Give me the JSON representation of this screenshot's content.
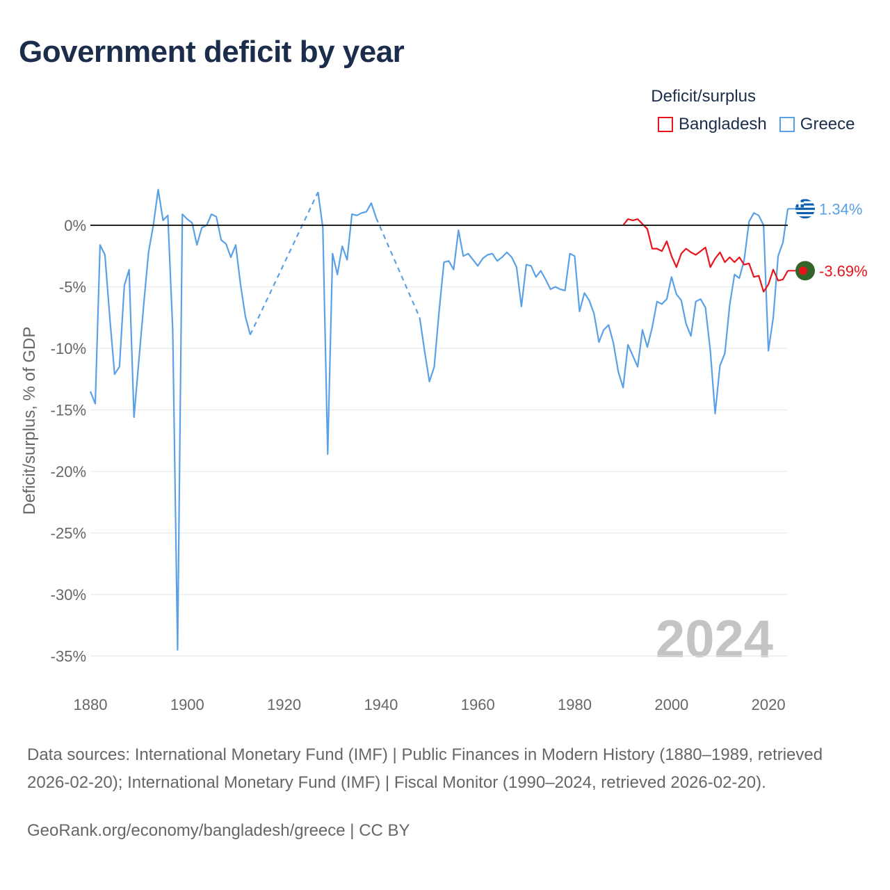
{
  "title": "Government deficit by year",
  "legend": {
    "title": "Deficit/surplus",
    "items": [
      {
        "label": "Bangladesh",
        "color": "#e8141c"
      },
      {
        "label": "Greece",
        "color": "#5aa0e6"
      }
    ]
  },
  "footer": {
    "sources": "Data sources: International Monetary Fund (IMF) | Public Finances in Modern History (1880–1989, retrieved 2026-02-20); International Monetary Fund (IMF) | Fiscal Monitor (1990–2024, retrieved 2026-02-20).",
    "credit": "GeoRank.org/economy/bangladesh/greece | CC BY"
  },
  "chart_data": {
    "type": "line",
    "title": "Government deficit by year",
    "xlabel": "",
    "ylabel": "Deficit/surplus, % of GDP",
    "xlim": [
      1880,
      2024
    ],
    "ylim": [
      -36,
      2.5
    ],
    "x_ticks": [
      1880,
      1900,
      1920,
      1940,
      1960,
      1980,
      2000,
      2020
    ],
    "y_ticks": [
      0,
      -5,
      -10,
      -15,
      -20,
      -25,
      -30,
      -35
    ],
    "y_tick_labels": [
      "0%",
      "-5%",
      "-10%",
      "-15%",
      "-20%",
      "-25%",
      "-30%",
      "-35%"
    ],
    "grid": true,
    "current_year_label": "2024",
    "series": [
      {
        "name": "Greece",
        "color": "#5aa0e6",
        "end_label": "1.34%",
        "segments": [
          {
            "dashed": false,
            "points": [
              [
                1880,
                -13.5
              ],
              [
                1881,
                -14.5
              ],
              [
                1882,
                -1.6
              ],
              [
                1883,
                -2.4
              ],
              [
                1884,
                -7.5
              ],
              [
                1885,
                -12.1
              ],
              [
                1886,
                -11.5
              ],
              [
                1887,
                -4.9
              ],
              [
                1888,
                -3.6
              ],
              [
                1889,
                -15.6
              ],
              [
                1890,
                -11
              ],
              [
                1891,
                -6.5
              ],
              [
                1892,
                -2.2
              ],
              [
                1893,
                0
              ],
              [
                1894,
                2.9
              ],
              [
                1895,
                0.4
              ],
              [
                1896,
                0.8
              ],
              [
                1897,
                -8.5
              ],
              [
                1898,
                -34.5
              ],
              [
                1899,
                0.9
              ],
              [
                1900,
                0.5
              ],
              [
                1901,
                0.2
              ],
              [
                1902,
                -1.6
              ],
              [
                1903,
                -0.2
              ],
              [
                1904,
                0
              ],
              [
                1905,
                0.9
              ],
              [
                1906,
                0.7
              ],
              [
                1907,
                -1.2
              ],
              [
                1908,
                -1.5
              ],
              [
                1909,
                -2.6
              ],
              [
                1910,
                -1.6
              ],
              [
                1911,
                -4.8
              ],
              [
                1912,
                -7.4
              ],
              [
                1913,
                -8.9
              ]
            ]
          },
          {
            "dashed": true,
            "points": [
              [
                1913,
                -8.9
              ],
              [
                1927,
                2.7
              ]
            ]
          },
          {
            "dashed": false,
            "points": [
              [
                1927,
                2.7
              ],
              [
                1928,
                -0.2
              ],
              [
                1929,
                -18.6
              ],
              [
                1930,
                -2.3
              ],
              [
                1931,
                -4
              ],
              [
                1932,
                -1.7
              ],
              [
                1933,
                -2.8
              ],
              [
                1934,
                0.9
              ],
              [
                1935,
                0.8
              ],
              [
                1936,
                1
              ],
              [
                1937,
                1.1
              ],
              [
                1938,
                1.8
              ],
              [
                1939,
                0.6
              ]
            ]
          },
          {
            "dashed": true,
            "points": [
              [
                1939,
                0.6
              ],
              [
                1948,
                -7.5
              ]
            ]
          },
          {
            "dashed": false,
            "points": [
              [
                1948,
                -7.5
              ],
              [
                1949,
                -10.2
              ],
              [
                1950,
                -12.7
              ],
              [
                1951,
                -11.5
              ],
              [
                1952,
                -7
              ],
              [
                1953,
                -3
              ],
              [
                1954,
                -2.9
              ],
              [
                1955,
                -3.6
              ],
              [
                1956,
                -0.4
              ],
              [
                1957,
                -2.5
              ],
              [
                1958,
                -2.3
              ],
              [
                1959,
                -2.8
              ],
              [
                1960,
                -3.3
              ],
              [
                1961,
                -2.7
              ],
              [
                1962,
                -2.4
              ],
              [
                1963,
                -2.3
              ],
              [
                1964,
                -2.9
              ],
              [
                1965,
                -2.6
              ],
              [
                1966,
                -2.2
              ],
              [
                1967,
                -2.6
              ],
              [
                1968,
                -3.4
              ],
              [
                1969,
                -6.6
              ],
              [
                1970,
                -3.2
              ],
              [
                1971,
                -3.3
              ],
              [
                1972,
                -4.2
              ],
              [
                1973,
                -3.7
              ],
              [
                1974,
                -4.4
              ],
              [
                1975,
                -5.2
              ],
              [
                1976,
                -5
              ],
              [
                1977,
                -5.2
              ],
              [
                1978,
                -5.3
              ],
              [
                1979,
                -2.3
              ],
              [
                1980,
                -2.5
              ],
              [
                1981,
                -7
              ],
              [
                1982,
                -5.5
              ],
              [
                1983,
                -6.1
              ],
              [
                1984,
                -7.2
              ],
              [
                1985,
                -9.5
              ],
              [
                1986,
                -8.5
              ],
              [
                1987,
                -8.1
              ],
              [
                1988,
                -9.6
              ],
              [
                1989,
                -11.9
              ],
              [
                1990,
                -13.2
              ],
              [
                1991,
                -9.7
              ],
              [
                1992,
                -10.6
              ],
              [
                1993,
                -11.5
              ],
              [
                1994,
                -8.5
              ],
              [
                1995,
                -9.9
              ],
              [
                1996,
                -8.3
              ],
              [
                1997,
                -6.2
              ],
              [
                1998,
                -6.4
              ],
              [
                1999,
                -6
              ],
              [
                2000,
                -4.2
              ],
              [
                2001,
                -5.6
              ],
              [
                2002,
                -6.1
              ],
              [
                2003,
                -8
              ],
              [
                2004,
                -9
              ],
              [
                2005,
                -6.2
              ],
              [
                2006,
                -6
              ],
              [
                2007,
                -6.7
              ],
              [
                2008,
                -10.2
              ],
              [
                2009,
                -15.3
              ],
              [
                2010,
                -11.4
              ],
              [
                2011,
                -10.4
              ],
              [
                2012,
                -6.5
              ],
              [
                2013,
                -4
              ],
              [
                2014,
                -4.3
              ],
              [
                2015,
                -2.8
              ],
              [
                2016,
                0.3
              ],
              [
                2017,
                1
              ],
              [
                2018,
                0.8
              ],
              [
                2019,
                0
              ],
              [
                2020,
                -10.2
              ],
              [
                2021,
                -7.5
              ],
              [
                2022,
                -2.5
              ],
              [
                2023,
                -1.4
              ],
              [
                2024,
                1.34
              ]
            ]
          }
        ]
      },
      {
        "name": "Bangladesh",
        "color": "#e8141c",
        "end_label": "-3.69%",
        "segments": [
          {
            "dashed": false,
            "points": [
              [
                1990,
                0
              ],
              [
                1991,
                0.5
              ],
              [
                1992,
                0.4
              ],
              [
                1993,
                0.5
              ],
              [
                1994,
                0.1
              ],
              [
                1995,
                -0.3
              ],
              [
                1996,
                -1.9
              ],
              [
                1997,
                -1.9
              ],
              [
                1998,
                -2.1
              ],
              [
                1999,
                -1.3
              ],
              [
                2000,
                -2.5
              ],
              [
                2001,
                -3.4
              ],
              [
                2002,
                -2.3
              ],
              [
                2003,
                -1.9
              ],
              [
                2004,
                -2.2
              ],
              [
                2005,
                -2.4
              ],
              [
                2006,
                -2.1
              ],
              [
                2007,
                -1.8
              ],
              [
                2008,
                -3.4
              ],
              [
                2009,
                -2.7
              ],
              [
                2010,
                -2.2
              ],
              [
                2011,
                -3
              ],
              [
                2012,
                -2.6
              ],
              [
                2013,
                -3
              ],
              [
                2014,
                -2.6
              ],
              [
                2015,
                -3.2
              ],
              [
                2016,
                -3.1
              ],
              [
                2017,
                -4.2
              ],
              [
                2018,
                -4.1
              ],
              [
                2019,
                -5.4
              ],
              [
                2020,
                -4.8
              ],
              [
                2021,
                -3.6
              ],
              [
                2022,
                -4.5
              ],
              [
                2023,
                -4.4
              ],
              [
                2024,
                -3.69
              ]
            ]
          }
        ]
      }
    ]
  }
}
